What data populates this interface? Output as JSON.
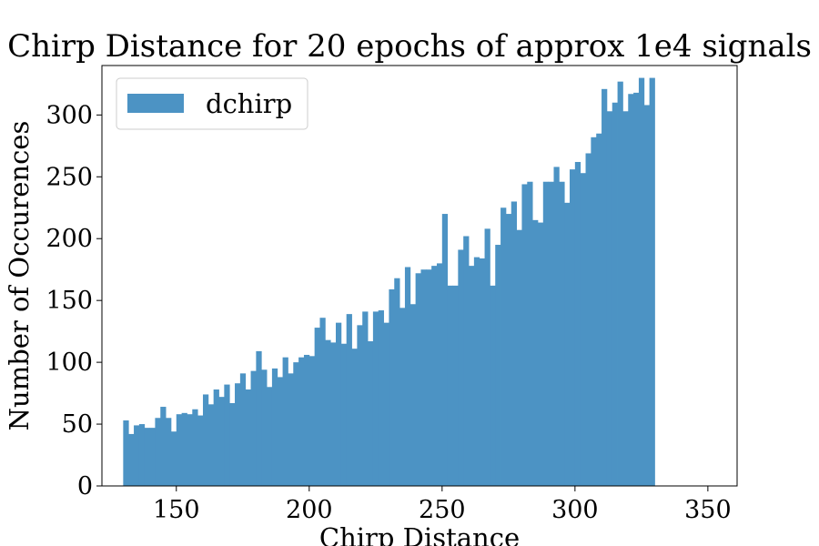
{
  "chart_data": {
    "type": "bar",
    "title": "Chirp Distance for 20 epochs of approx 1e4 signals",
    "xlabel": "Chirp Distance",
    "ylabel": "Number of Occurences",
    "xlim": [
      122,
      361
    ],
    "ylim": [
      0,
      340
    ],
    "xticks": [
      150,
      200,
      250,
      300,
      350
    ],
    "yticks": [
      0,
      50,
      100,
      150,
      200,
      250,
      300
    ],
    "grid": false,
    "legend": {
      "placement": "upper-left"
    },
    "bin_start": 130,
    "bin_width": 2,
    "series": [
      {
        "name": "dchirp",
        "color": "#4c93c4",
        "values": [
          53,
          42,
          49,
          50,
          47,
          47,
          55,
          64,
          55,
          44,
          58,
          59,
          58,
          62,
          57,
          74,
          66,
          78,
          72,
          82,
          67,
          83,
          91,
          78,
          93,
          109,
          94,
          80,
          95,
          88,
          104,
          91,
          100,
          104,
          106,
          105,
          128,
          136,
          118,
          116,
          132,
          115,
          139,
          111,
          130,
          141,
          117,
          141,
          142,
          132,
          159,
          168,
          144,
          177,
          147,
          172,
          175,
          175,
          178,
          180,
          220,
          162,
          162,
          191,
          202,
          178,
          185,
          184,
          208,
          162,
          195,
          225,
          220,
          230,
          207,
          244,
          246,
          215,
          213,
          246,
          246,
          258,
          246,
          229,
          256,
          262,
          253,
          269,
          282,
          285,
          321,
          303,
          310,
          327,
          303,
          317,
          318,
          330,
          308,
          330
        ]
      }
    ]
  }
}
